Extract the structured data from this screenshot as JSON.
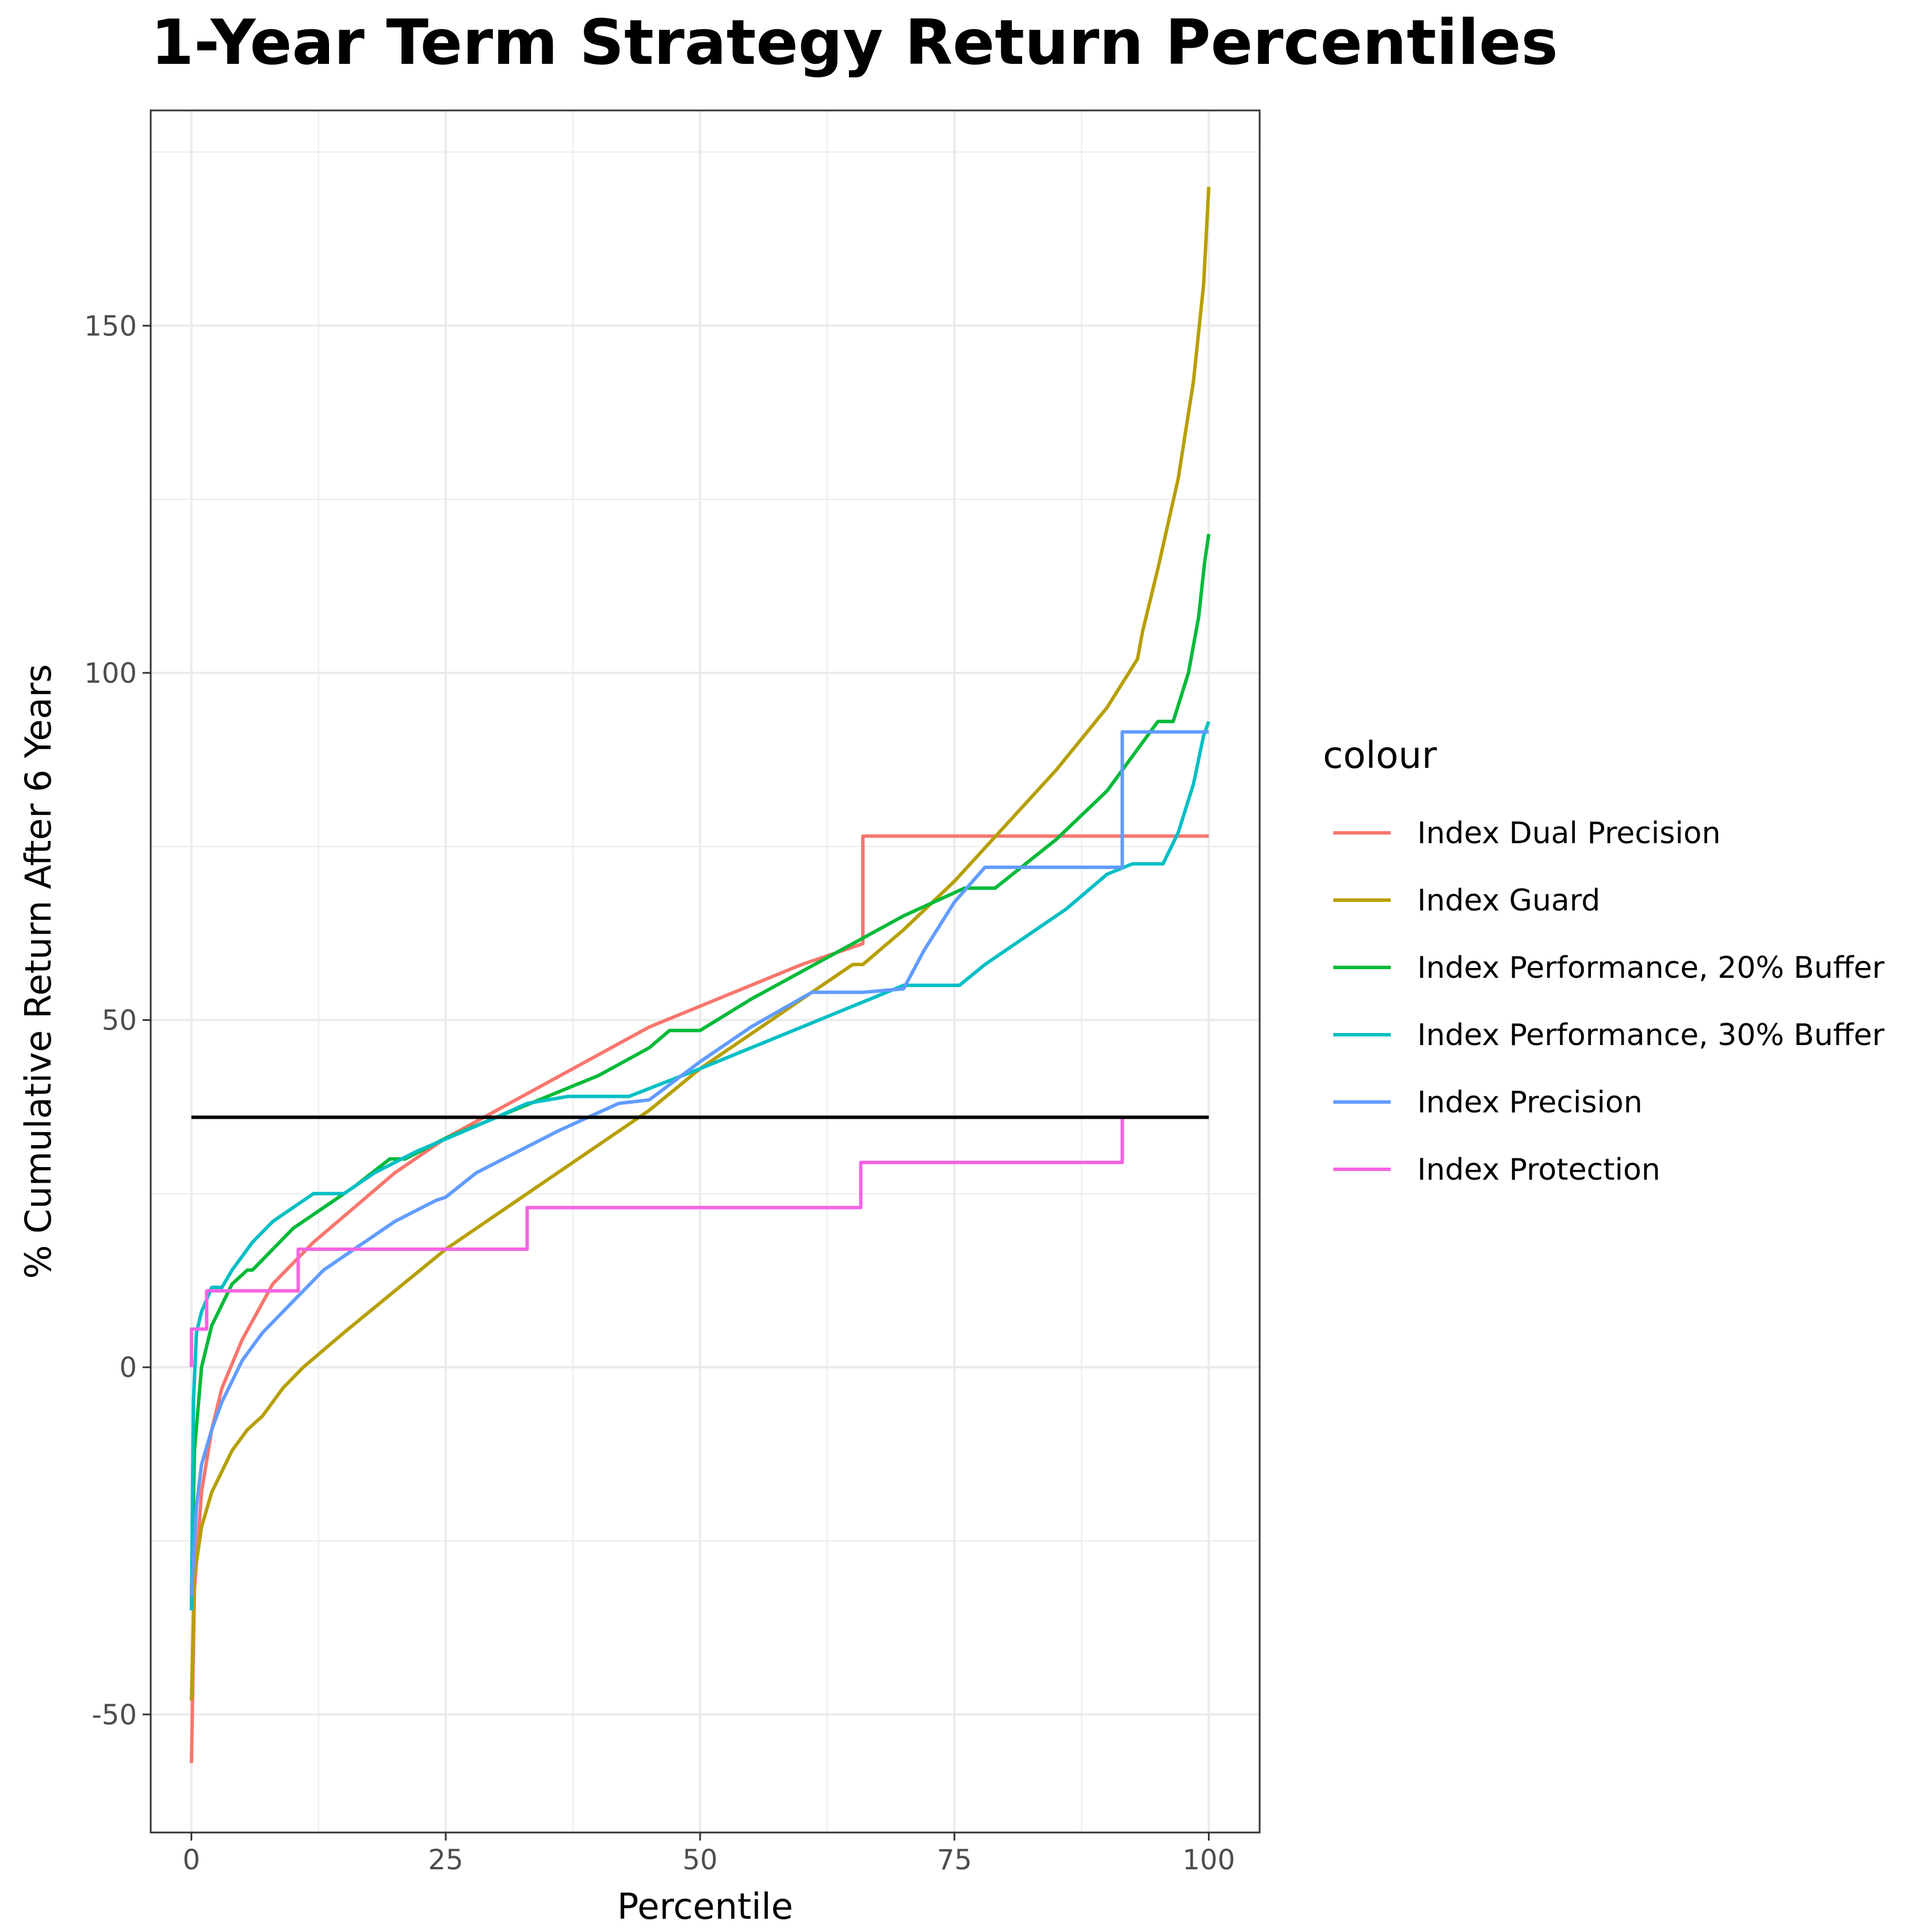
{
  "chart_data": {
    "type": "line",
    "title": "1-Year Term Strategy Return Percentiles",
    "xlabel": "Percentile",
    "ylabel": "% Cumulative Return After 6 Years",
    "xlim": [
      -4,
      105
    ],
    "ylim": [
      -67,
      181
    ],
    "x_ticks": [
      0,
      25,
      50,
      75,
      100
    ],
    "y_ticks": [
      -50,
      0,
      50,
      100,
      150
    ],
    "grid": true,
    "legend": {
      "title": "colour",
      "position": "right"
    },
    "reference_line": {
      "y": 36,
      "x_start": 0,
      "x_end": 100,
      "color": "#000000"
    },
    "series": [
      {
        "name": "Index Dual Precision",
        "color": "#F8766D",
        "x": [
          0,
          0.3,
          1,
          2,
          3,
          5,
          8,
          12,
          16,
          20,
          25,
          30,
          35,
          40,
          45,
          50,
          55,
          60,
          66,
          66,
          70,
          100
        ],
        "y": [
          -57,
          -32,
          -18,
          -9,
          -3,
          4,
          12,
          18,
          23,
          28,
          33,
          37,
          41,
          45,
          49,
          52,
          55,
          58,
          61,
          76.5,
          76.5,
          76.5
        ]
      },
      {
        "name": "Index Guard",
        "color": "#B79F00",
        "x": [
          0,
          0.3,
          1,
          2,
          3,
          4,
          5.5,
          7,
          9,
          11,
          15,
          20,
          25,
          28,
          35,
          40,
          45,
          50,
          55,
          60,
          65,
          66,
          70,
          75,
          80,
          85,
          90,
          93,
          93.5,
          95,
          97,
          98.5,
          99.5,
          100
        ],
        "y": [
          -48,
          -30,
          -23,
          -18,
          -15,
          -12,
          -9,
          -7,
          -3,
          0,
          5,
          11,
          17,
          20,
          27,
          32,
          37,
          43,
          48,
          53,
          58,
          58,
          63,
          70,
          78,
          86,
          95,
          102,
          106,
          115,
          128,
          142,
          156,
          170
        ]
      },
      {
        "name": "Index Performance, 20% Buffer",
        "color": "#00BA38",
        "x": [
          0,
          0.3,
          1,
          2,
          3,
          4,
          5.5,
          6,
          8,
          10,
          12,
          14,
          16,
          19.5,
          21,
          25,
          30,
          35,
          40,
          45,
          47,
          50,
          55,
          60,
          65,
          70,
          76,
          79,
          85,
          90,
          93,
          95,
          96.5,
          98,
          99,
          99.6,
          100
        ],
        "y": [
          -33,
          -12,
          0,
          6,
          9,
          12,
          14,
          14,
          17,
          20,
          22,
          24,
          26,
          30,
          30,
          33,
          36,
          39,
          42,
          46,
          48.5,
          48.5,
          53,
          57,
          61,
          65,
          69,
          69,
          76,
          83,
          89,
          93,
          93,
          100,
          108,
          116,
          120
        ]
      },
      {
        "name": "Index Performance, 30% Buffer",
        "color": "#00BFC4",
        "x": [
          0,
          0.2,
          0.5,
          1,
          2,
          3,
          4,
          6,
          8,
          10,
          12,
          15,
          18,
          22,
          26,
          30,
          33,
          37,
          43,
          50,
          55,
          60,
          65,
          70,
          75.5,
          78,
          82,
          86,
          90,
          92.5,
          95.5,
          97,
          98.5,
          99.5,
          100
        ],
        "y": [
          -35,
          -5,
          5,
          8,
          11.5,
          11.5,
          14,
          18,
          21,
          23,
          25,
          25,
          28,
          31,
          33.5,
          36,
          38,
          39,
          39,
          43,
          46,
          49,
          52,
          55,
          55,
          58,
          62,
          66,
          71,
          72.5,
          72.5,
          77,
          84,
          91,
          93
        ]
      },
      {
        "name": "Index Precision",
        "color": "#619CFF",
        "x": [
          0,
          0.5,
          1,
          2,
          3,
          4,
          5,
          7,
          9,
          11,
          13,
          16,
          20,
          24,
          25,
          28,
          32,
          36,
          42,
          45,
          50,
          55,
          61,
          66,
          70,
          72,
          75,
          78,
          82,
          90,
          91.5,
          91.5,
          95,
          100
        ],
        "y": [
          -33,
          -20,
          -14,
          -9,
          -5,
          -2,
          1,
          5,
          8,
          11,
          14,
          17,
          21,
          24,
          24.5,
          28,
          31,
          34,
          38,
          38.5,
          44,
          49,
          54,
          54,
          54.5,
          60,
          67,
          72,
          72,
          72,
          72,
          91.5,
          91.5,
          91.5
        ]
      },
      {
        "name": "Index Protection",
        "color": "#F564E3",
        "x": [
          0,
          0,
          0.1,
          1.5,
          1.5,
          10.5,
          10.5,
          33,
          33,
          65.8,
          65.8,
          91.5,
          91.5
        ],
        "y": [
          0,
          5.5,
          5.5,
          5.5,
          11,
          11,
          17,
          17,
          23,
          23,
          29.5,
          29.5,
          36
        ]
      }
    ]
  }
}
